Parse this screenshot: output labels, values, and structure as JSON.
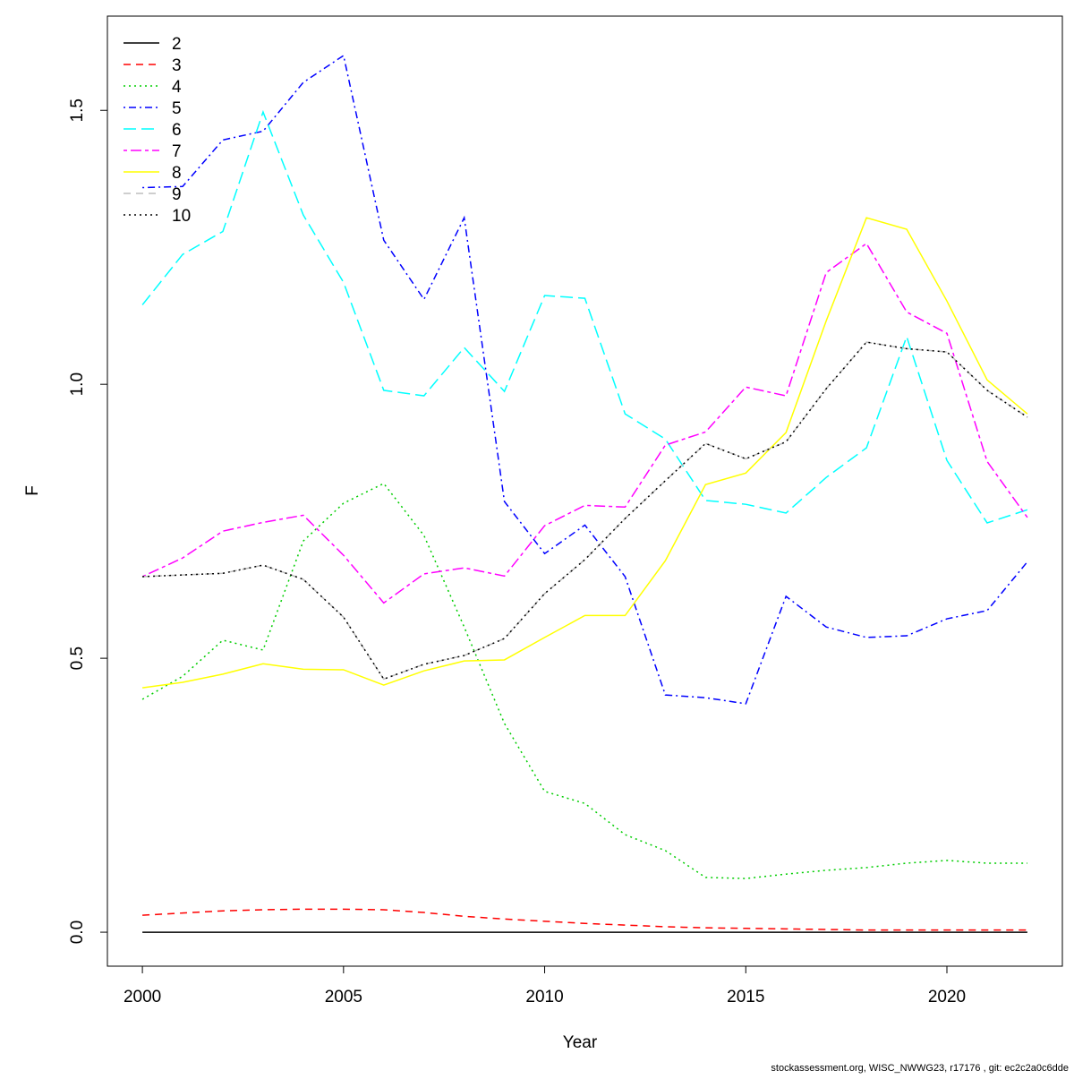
{
  "chart_data": {
    "type": "line",
    "x": [
      2000,
      2001,
      2002,
      2003,
      2004,
      2005,
      2006,
      2007,
      2008,
      2009,
      2010,
      2011,
      2012,
      2013,
      2014,
      2015,
      2016,
      2017,
      2018,
      2019,
      2020,
      2021,
      2022
    ],
    "xlabel": "Year",
    "ylabel": "F",
    "footer": "stockassessment.org, WISC_NWWG23, r17176 , git: ec2c2a0c6dde",
    "xlim": [
      1999.13,
      2022.87
    ],
    "xticks": [
      2000,
      2005,
      2010,
      2015,
      2020
    ],
    "ylim": [
      -0.062,
      1.672
    ],
    "yticks": [
      {
        "value": 0,
        "label": "0.0"
      },
      0.5,
      {
        "value": 1,
        "label": "1.0"
      },
      1.5
    ],
    "legend": "topleft",
    "series": [
      {
        "name": "2",
        "color": "#000000",
        "linetype": "solid",
        "values": [
          0,
          0,
          0,
          0,
          0,
          0,
          0,
          0,
          0,
          0,
          0,
          0,
          0,
          0,
          0,
          0,
          0,
          0,
          0,
          0,
          0,
          0,
          0
        ]
      },
      {
        "name": "3",
        "color": "#ff0000",
        "linetype": "dashed",
        "values": [
          0.031,
          0.035,
          0.039,
          0.041,
          0.042,
          0.042,
          0.041,
          0.036,
          0.029,
          0.024,
          0.02,
          0.016,
          0.013,
          0.01,
          0.008,
          0.007,
          0.006,
          0.005,
          0.004,
          0.004,
          0.004,
          0.004,
          0.004
        ]
      },
      {
        "name": "4",
        "color": "#00cd00",
        "linetype": "dotted",
        "values": [
          0.425,
          0.467,
          0.533,
          0.515,
          0.714,
          0.783,
          0.819,
          0.724,
          0.557,
          0.381,
          0.257,
          0.235,
          0.178,
          0.149,
          0.1,
          0.098,
          0.106,
          0.113,
          0.118,
          0.126,
          0.131,
          0.126,
          0.126
        ]
      },
      {
        "name": "5",
        "color": "#0000ff",
        "linetype": "dotdash",
        "values": [
          1.359,
          1.361,
          1.446,
          1.462,
          1.551,
          1.6,
          1.263,
          1.155,
          1.304,
          0.786,
          0.691,
          0.743,
          0.649,
          0.433,
          0.428,
          0.417,
          0.613,
          0.557,
          0.538,
          0.541,
          0.572,
          0.587,
          0.676
        ]
      },
      {
        "name": "6",
        "color": "#00ffff",
        "linetype": "longdash",
        "values": [
          1.145,
          1.237,
          1.279,
          1.497,
          1.309,
          1.186,
          0.989,
          0.979,
          1.067,
          0.987,
          1.162,
          1.157,
          0.946,
          0.9,
          0.788,
          0.781,
          0.765,
          0.83,
          0.884,
          1.087,
          0.861,
          0.747,
          0.771
        ]
      },
      {
        "name": "7",
        "color": "#ff00ff",
        "linetype": "twodash",
        "values": [
          0.649,
          0.683,
          0.732,
          0.748,
          0.761,
          0.688,
          0.601,
          0.654,
          0.665,
          0.65,
          0.742,
          0.779,
          0.776,
          0.889,
          0.913,
          0.995,
          0.979,
          1.204,
          1.257,
          1.132,
          1.093,
          0.859,
          0.757
        ]
      },
      {
        "name": "8",
        "color": "#ffff00",
        "linetype": "solid",
        "values": [
          0.446,
          0.456,
          0.471,
          0.49,
          0.48,
          0.479,
          0.451,
          0.477,
          0.495,
          0.497,
          0.538,
          0.578,
          0.578,
          0.678,
          0.817,
          0.838,
          0.912,
          1.116,
          1.304,
          1.283,
          1.152,
          1.008,
          0.946
        ]
      },
      {
        "name": "9",
        "color": "#bebebe",
        "linetype": "dashed",
        "values": [
          0.649,
          0.652,
          0.655,
          0.67,
          0.644,
          0.575,
          0.462,
          0.489,
          0.505,
          0.536,
          0.618,
          0.68,
          0.755,
          0.824,
          0.892,
          0.864,
          0.895,
          0.992,
          1.077,
          1.065,
          1.059,
          0.989,
          0.94
        ]
      },
      {
        "name": "10",
        "color": "#000000",
        "linetype": "dotted",
        "values": [
          0.649,
          0.652,
          0.655,
          0.67,
          0.644,
          0.575,
          0.462,
          0.489,
          0.505,
          0.536,
          0.618,
          0.68,
          0.755,
          0.824,
          0.892,
          0.864,
          0.895,
          0.992,
          1.077,
          1.065,
          1.059,
          0.989,
          0.94
        ]
      }
    ]
  }
}
